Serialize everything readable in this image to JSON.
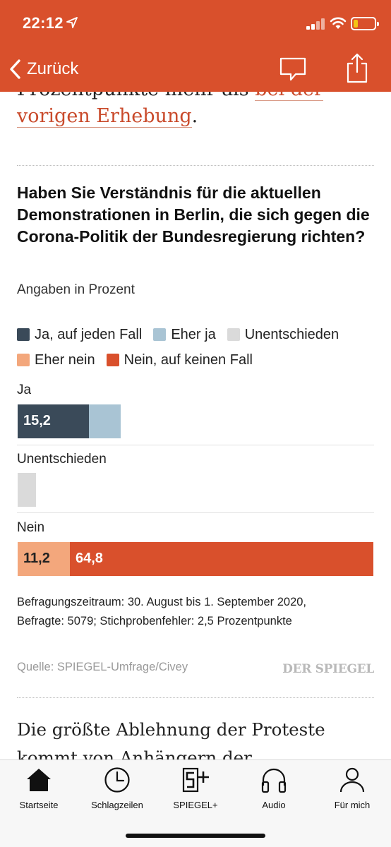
{
  "status_bar": {
    "time": "22:12"
  },
  "nav": {
    "back_label": "Zurück"
  },
  "article": {
    "prev_text_before_link": "Prozentpunkte mehr als ",
    "prev_link_text": "bei der vorigen Erhebung",
    "prev_text_after_link": ".",
    "next_text": "Die größte Ablehnung der Proteste kommt von Anhängern der Regierungsparteien. So"
  },
  "poll": {
    "question": "Haben Sie Verständnis für die aktuellen Demonstrationen in Berlin, die sich gegen die Corona-Politik der Bundesregierung richten?",
    "subtitle": "Angaben in Prozent",
    "legend": [
      {
        "label": "Ja, auf jeden Fall",
        "color": "#3a4a59"
      },
      {
        "label": "Eher ja",
        "color": "#a9c4d4"
      },
      {
        "label": "Unentschieden",
        "color": "#dadada"
      },
      {
        "label": "Eher nein",
        "color": "#f3a77c"
      },
      {
        "label": "Nein, auf keinen Fall",
        "color": "#d9502c"
      }
    ],
    "groups": {
      "ja": "Ja",
      "unentschieden": "Unentschieden",
      "nein": "Nein"
    },
    "meta_line1": "Befragungszeitraum: 30. August bis 1. September 2020,",
    "meta_line2": "Befragte: 5079; Stichprobenfehler: 2,5 Prozentpunkte",
    "source": "Quelle: SPIEGEL-Umfrage/Civey",
    "brand": "DER SPIEGEL"
  },
  "chart_data": {
    "type": "bar",
    "stacked": true,
    "orientation": "horizontal",
    "unit": "Prozent",
    "categories": [
      "Ja",
      "Unentschieden",
      "Nein"
    ],
    "series": [
      {
        "name": "Ja, auf jeden Fall",
        "color": "#3a4a59",
        "values": [
          15.2,
          0,
          0
        ]
      },
      {
        "name": "Eher ja",
        "color": "#a9c4d4",
        "values": [
          6.8,
          0,
          0
        ]
      },
      {
        "name": "Unentschieden",
        "color": "#dadada",
        "values": [
          0,
          3.9,
          0
        ]
      },
      {
        "name": "Eher nein",
        "color": "#f3a77c",
        "values": [
          0,
          0,
          11.2
        ]
      },
      {
        "name": "Nein, auf keinen Fall",
        "color": "#d9502c",
        "values": [
          0,
          0,
          64.8
        ]
      }
    ],
    "printed_labels": {
      "ja_auf_jeden_fall": "15,2",
      "eher_nein": "11,2",
      "nein_auf_keinen_fall": "64,8"
    },
    "xlim": [
      0,
      76
    ]
  },
  "tabbar": {
    "tabs": [
      {
        "label": "Startseite",
        "icon": "home-icon"
      },
      {
        "label": "Schlagzeilen",
        "icon": "clock-icon"
      },
      {
        "label": "SPIEGEL+",
        "icon": "spiegel-plus-icon"
      },
      {
        "label": "Audio",
        "icon": "headphones-icon"
      },
      {
        "label": "Für mich",
        "icon": "person-icon"
      }
    ]
  }
}
